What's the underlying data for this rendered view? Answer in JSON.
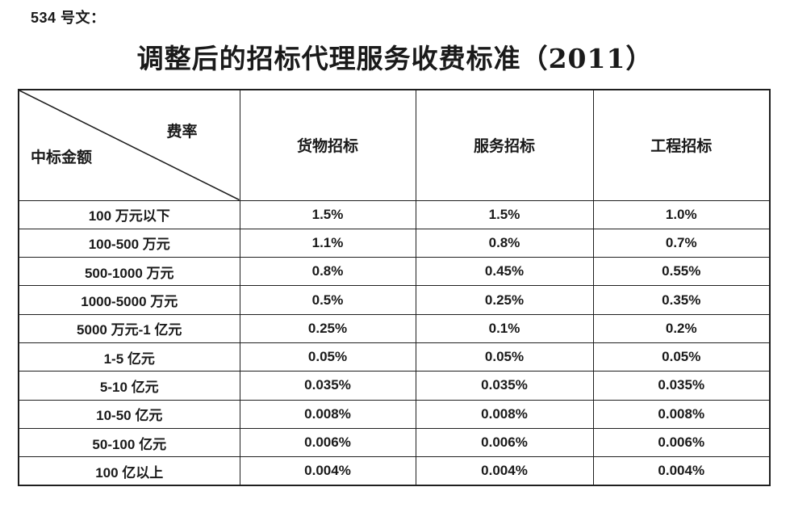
{
  "page": {
    "doc_label": "534 号文：",
    "title": "调整后的招标代理服务收费标准（2011）"
  },
  "table": {
    "corner": {
      "top_right": "费率",
      "bottom_left": "中标金额"
    },
    "columns": [
      "货物招标",
      "服务招标",
      "工程招标"
    ],
    "rows": [
      {
        "amount": "100 万元以下",
        "rates": [
          "1.5%",
          "1.5%",
          "1.0%"
        ]
      },
      {
        "amount": "100-500 万元",
        "rates": [
          "1.1%",
          "0.8%",
          "0.7%"
        ]
      },
      {
        "amount": "500-1000 万元",
        "rates": [
          "0.8%",
          "0.45%",
          "0.55%"
        ]
      },
      {
        "amount": "1000-5000 万元",
        "rates": [
          "0.5%",
          "0.25%",
          "0.35%"
        ]
      },
      {
        "amount": "5000 万元-1 亿元",
        "rates": [
          "0.25%",
          "0.1%",
          "0.2%"
        ]
      },
      {
        "amount": "1-5 亿元",
        "rates": [
          "0.05%",
          "0.05%",
          "0.05%"
        ]
      },
      {
        "amount": "5-10 亿元",
        "rates": [
          "0.035%",
          "0.035%",
          "0.035%"
        ]
      },
      {
        "amount": "10-50 亿元",
        "rates": [
          "0.008%",
          "0.008%",
          "0.008%"
        ]
      },
      {
        "amount": "50-100 亿元",
        "rates": [
          "0.006%",
          "0.006%",
          "0.006%"
        ]
      },
      {
        "amount": "100 亿以上",
        "rates": [
          "0.004%",
          "0.004%",
          "0.004%"
        ]
      }
    ]
  },
  "colors": {
    "background": "#ffffff",
    "text": "#1a1a1a",
    "table_border": "#1f1f1f"
  }
}
